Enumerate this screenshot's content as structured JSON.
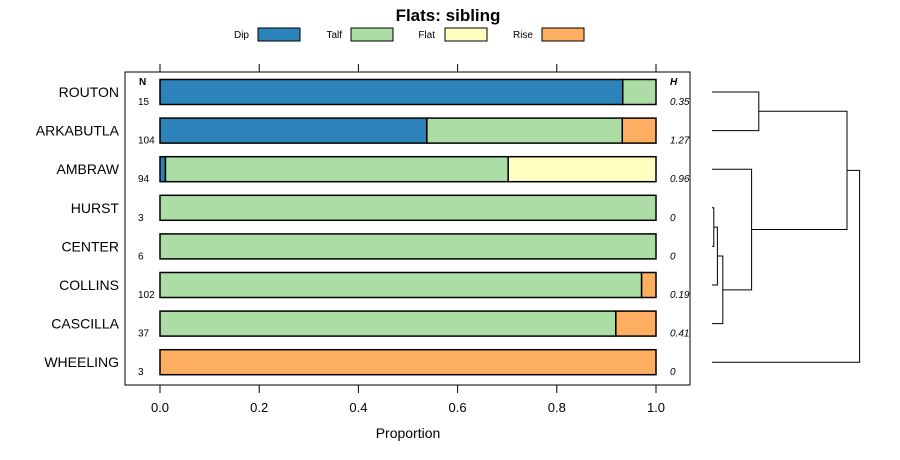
{
  "chart_data": {
    "type": "bar",
    "orientation": "horizontal",
    "stacked": true,
    "title": "Flats: sibling",
    "xlabel": "Proportion",
    "ylabel": "",
    "xlim": [
      0,
      1
    ],
    "x_ticks": [
      "0.0",
      "0.2",
      "0.4",
      "0.6",
      "0.8",
      "1.0"
    ],
    "n_header": "N",
    "h_header": "H",
    "legend_position": "top",
    "categories": [
      "ROUTON",
      "ARKABUTLA",
      "AMBRAW",
      "HURST",
      "CENTER",
      "COLLINS",
      "CASCILLA",
      "WHEELING"
    ],
    "n": [
      "15",
      "104",
      "94",
      "3",
      "6",
      "102",
      "37",
      "3"
    ],
    "h": [
      "0.35",
      "1.27",
      "0.96",
      "0",
      "0",
      "0.19",
      "0.41",
      "0"
    ],
    "series": [
      {
        "name": "Dip",
        "color": "#2b83ba",
        "values": [
          0.933,
          0.538,
          0.011,
          0,
          0,
          0,
          0,
          0
        ]
      },
      {
        "name": "Talf",
        "color": "#abdda4",
        "values": [
          0.067,
          0.394,
          0.691,
          1,
          1,
          0.971,
          0.919,
          0
        ]
      },
      {
        "name": "Flat",
        "color": "#ffffbf",
        "values": [
          0,
          0,
          0.298,
          0,
          0,
          0,
          0,
          0
        ]
      },
      {
        "name": "Rise",
        "color": "#fdae61",
        "values": [
          0,
          0.068,
          0,
          0,
          0,
          0.029,
          0.081,
          1
        ]
      }
    ],
    "dendrogram": {
      "merges": [
        [
          "HURST",
          "CENTER",
          0.01
        ],
        [
          "HURST+CENTER",
          "COLLINS",
          0.03
        ],
        [
          "HURST+CENTER+COLLINS",
          "CASCILLA",
          0.06
        ],
        [
          "ROUTON",
          "ARKABUTLA",
          0.26
        ],
        [
          "AMBRAW",
          "HURST+CENTER+COLLINS+CASCILLA",
          0.22
        ],
        [
          "ROUTON+ARKABUTLA",
          "AMBRAW+HURST+CENTER+COLLINS+CASCILLA",
          0.75
        ],
        [
          "ROUTON+ARKABUTLA+AMBRAW+HURST+CENTER+COLLINS+CASCILLA",
          "WHEELING",
          0.82
        ]
      ]
    }
  }
}
